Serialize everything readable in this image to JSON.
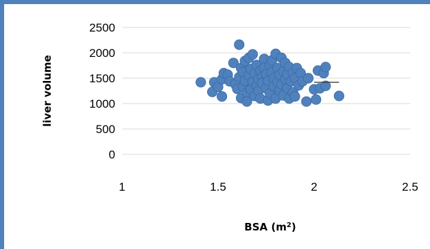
{
  "chart_data": {
    "type": "scatter",
    "title": "",
    "xlabel_main": "BSA (m",
    "xlabel_sup": "2",
    "xlabel_tail": ")",
    "ylabel": "liver volume",
    "xlim": [
      1,
      2.5
    ],
    "ylim": [
      0,
      2500
    ],
    "xticks": [
      "1",
      "1.5",
      "2",
      "2.5"
    ],
    "yticks": [
      "0",
      "500",
      "1000",
      "1500",
      "2000",
      "2500"
    ],
    "grid": "horizontal",
    "marker_color": "#4f81bd",
    "trendline": {
      "x": [
        2.0,
        2.13
      ],
      "y": [
        1420,
        1420
      ]
    },
    "points": [
      [
        1.41,
        1420
      ],
      [
        1.47,
        1230
      ],
      [
        1.48,
        1420
      ],
      [
        1.5,
        1330
      ],
      [
        1.52,
        1140
      ],
      [
        1.52,
        1480
      ],
      [
        1.53,
        1600
      ],
      [
        1.55,
        1570
      ],
      [
        1.56,
        1440
      ],
      [
        1.58,
        1800
      ],
      [
        1.59,
        1380
      ],
      [
        1.6,
        1290
      ],
      [
        1.61,
        1520
      ],
      [
        1.61,
        2160
      ],
      [
        1.62,
        1700
      ],
      [
        1.62,
        1110
      ],
      [
        1.63,
        1620
      ],
      [
        1.63,
        1330
      ],
      [
        1.64,
        1840
      ],
      [
        1.64,
        1450
      ],
      [
        1.65,
        1210
      ],
      [
        1.65,
        1040
      ],
      [
        1.66,
        1560
      ],
      [
        1.66,
        1900
      ],
      [
        1.67,
        1280
      ],
      [
        1.67,
        1680
      ],
      [
        1.68,
        1970
      ],
      [
        1.68,
        1430
      ],
      [
        1.69,
        1150
      ],
      [
        1.69,
        1590
      ],
      [
        1.7,
        1760
      ],
      [
        1.7,
        1350
      ],
      [
        1.71,
        1480
      ],
      [
        1.71,
        1250
      ],
      [
        1.72,
        1640
      ],
      [
        1.72,
        1100
      ],
      [
        1.73,
        1520
      ],
      [
        1.73,
        1400
      ],
      [
        1.74,
        1880
      ],
      [
        1.74,
        1700
      ],
      [
        1.75,
        1300
      ],
      [
        1.75,
        1580
      ],
      [
        1.76,
        1060
      ],
      [
        1.76,
        1450
      ],
      [
        1.77,
        1760
      ],
      [
        1.77,
        1200
      ],
      [
        1.78,
        1620
      ],
      [
        1.78,
        1850
      ],
      [
        1.79,
        1500
      ],
      [
        1.79,
        1340
      ],
      [
        1.8,
        1980
      ],
      [
        1.8,
        1100
      ],
      [
        1.81,
        1420
      ],
      [
        1.81,
        1700
      ],
      [
        1.82,
        1560
      ],
      [
        1.82,
        1260
      ],
      [
        1.83,
        1900
      ],
      [
        1.83,
        1380
      ],
      [
        1.84,
        1640
      ],
      [
        1.84,
        1160
      ],
      [
        1.85,
        1800
      ],
      [
        1.85,
        1480
      ],
      [
        1.86,
        1300
      ],
      [
        1.86,
        1580
      ],
      [
        1.87,
        1720
      ],
      [
        1.87,
        1100
      ],
      [
        1.88,
        1440
      ],
      [
        1.89,
        1600
      ],
      [
        1.89,
        1220
      ],
      [
        1.9,
        1500
      ],
      [
        1.9,
        1140
      ],
      [
        1.91,
        1700
      ],
      [
        1.92,
        1360
      ],
      [
        1.93,
        1600
      ],
      [
        1.94,
        1440
      ],
      [
        1.96,
        1040
      ],
      [
        1.97,
        1500
      ],
      [
        2.0,
        1280
      ],
      [
        2.01,
        1080
      ],
      [
        2.02,
        1650
      ],
      [
        2.03,
        1300
      ],
      [
        2.05,
        1600
      ],
      [
        2.06,
        1720
      ],
      [
        2.06,
        1350
      ],
      [
        2.13,
        1150
      ]
    ]
  }
}
